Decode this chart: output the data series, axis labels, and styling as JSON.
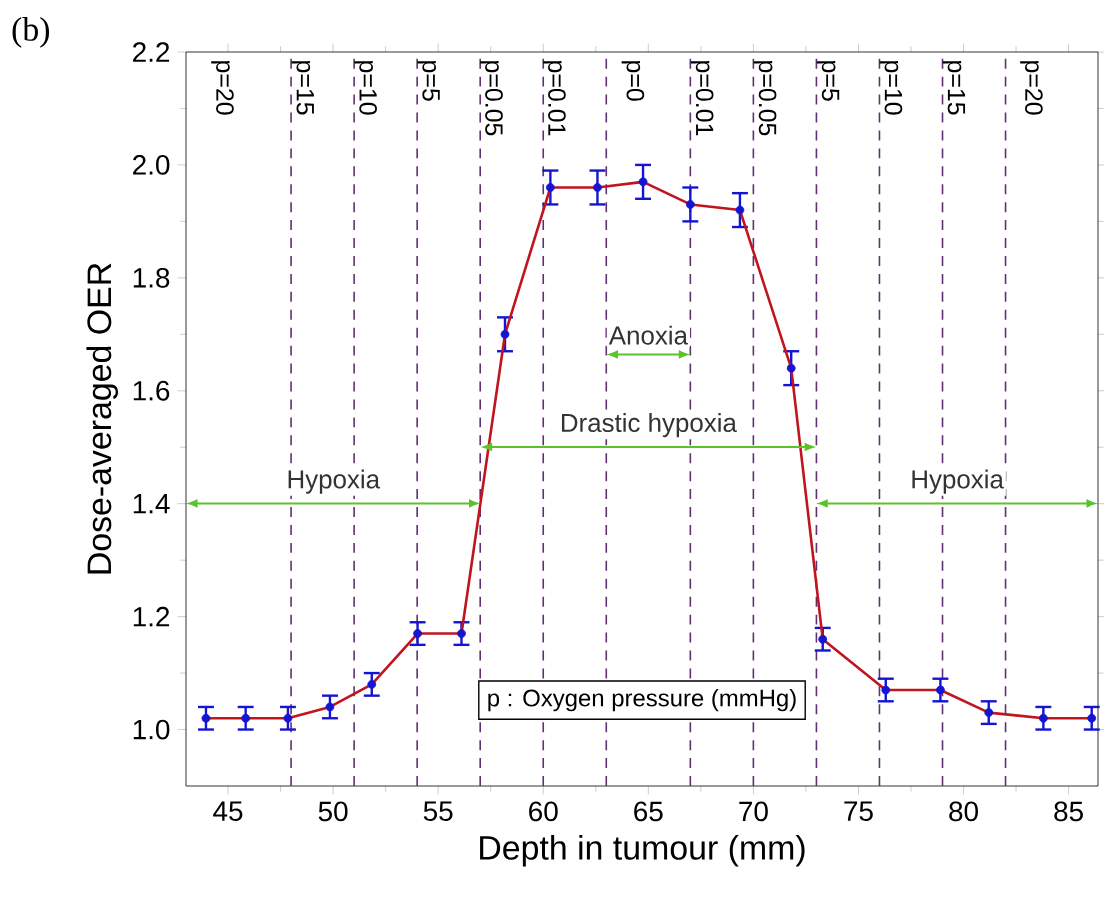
{
  "chart_data": {
    "type": "scatter",
    "xlabel": "Depth in tumour (mm)",
    "ylabel": "Dose-averaged OER",
    "x": [
      43.95,
      45.84,
      47.85,
      49.85,
      51.84,
      54.02,
      56.11,
      58.18,
      60.34,
      62.58,
      64.75,
      67.0,
      69.36,
      71.8,
      73.3,
      76.3,
      78.9,
      81.2,
      83.8,
      86.1
    ],
    "series": [
      {
        "color": "#1414d2",
        "values": [
          1.02,
          1.02,
          1.02,
          1.04,
          1.08,
          1.17,
          1.17,
          1.7,
          1.96,
          1.96,
          1.97,
          1.93,
          1.92,
          1.64,
          1.16,
          1.07,
          1.07,
          1.03,
          1.02,
          1.02
        ],
        "errors": [
          0.02,
          0.02,
          0.02,
          0.02,
          0.02,
          0.02,
          0.02,
          0.03,
          0.03,
          0.03,
          0.03,
          0.03,
          0.03,
          0.03,
          0.02,
          0.02,
          0.02,
          0.02,
          0.02,
          0.02
        ]
      },
      {
        "type": "line",
        "color": "#c0141e",
        "line_style": "solid",
        "values": [
          1.02,
          1.02,
          1.02,
          1.04,
          1.08,
          1.17,
          1.17,
          1.7,
          1.96,
          1.96,
          1.97,
          1.93,
          1.92,
          1.64,
          1.16,
          1.07,
          1.07,
          1.03,
          1.02,
          1.02
        ]
      }
    ],
    "xlim": [
      43,
      86.4
    ],
    "xticks": [
      45,
      50,
      55,
      60,
      65,
      70,
      75,
      80,
      85
    ],
    "ylim": [
      0.9,
      2.2
    ],
    "yticks": [
      {
        "value": 1.0,
        "label": "1.0"
      },
      {
        "value": 1.2,
        "label": "1.2"
      },
      {
        "value": 1.4,
        "label": "1.4"
      },
      {
        "value": 1.6,
        "label": "1.6"
      },
      {
        "value": 1.8,
        "label": "1.8"
      },
      {
        "value": 2.0,
        "label": "2.0"
      },
      {
        "value": 2.2,
        "label": "2.2"
      }
    ],
    "ref_lines": [
      {
        "axis": "x",
        "value": 48,
        "color": "#603070",
        "line_style": "dashed"
      },
      {
        "axis": "x",
        "value": 51,
        "color": "#603070",
        "line_style": "dashed"
      },
      {
        "axis": "x",
        "value": 54,
        "color": "#603070",
        "line_style": "dashed"
      },
      {
        "axis": "x",
        "value": 57,
        "color": "#603070",
        "line_style": "dashed"
      },
      {
        "axis": "x",
        "value": 60,
        "color": "#603070",
        "line_style": "dashed"
      },
      {
        "axis": "x",
        "value": 63,
        "color": "#603070",
        "line_style": "dashed"
      },
      {
        "axis": "x",
        "value": 67,
        "color": "#603070",
        "line_style": "dashed"
      },
      {
        "axis": "x",
        "value": 70,
        "color": "#603070",
        "line_style": "dashed"
      },
      {
        "axis": "x",
        "value": 73,
        "color": "#603070",
        "line_style": "dashed"
      },
      {
        "axis": "x",
        "value": 76,
        "color": "#603070",
        "line_style": "dashed"
      },
      {
        "axis": "x",
        "value": 79,
        "color": "#603070",
        "line_style": "dashed"
      },
      {
        "axis": "x",
        "value": 82,
        "color": "#603070",
        "line_style": "dashed"
      }
    ],
    "annotations": [
      "(b)",
      "p : Oxygen pressure (mmHg)",
      "p=20",
      "p=15",
      "p=10",
      "p=5",
      "p=0.05",
      "p=0.01",
      "p=0",
      "p=0.01",
      "p=0.05",
      "p=5",
      "p=10",
      "p=15",
      "p=20",
      "Hypoxia",
      "Drastic hypoxia",
      "Anoxia",
      "Hypoxia"
    ]
  }
}
